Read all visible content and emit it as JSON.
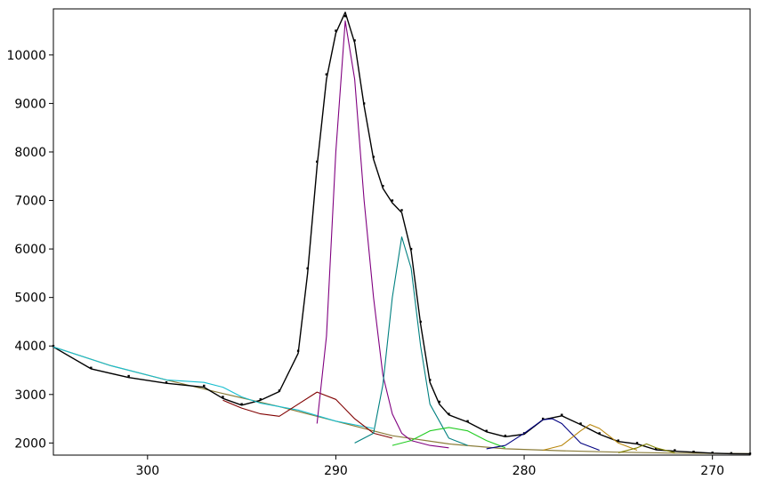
{
  "chart_data": {
    "type": "line",
    "title": "",
    "xlabel": "",
    "ylabel": "",
    "x_reversed": true,
    "xlim": [
      305,
      268
    ],
    "ylim": [
      1750,
      10950
    ],
    "x_ticks": [
      "300",
      "290",
      "280",
      "270"
    ],
    "x_tick_values": [
      300,
      290,
      280,
      270
    ],
    "y_ticks": [
      "2000",
      "3000",
      "4000",
      "5000",
      "6000",
      "7000",
      "8000",
      "9000",
      "10000"
    ],
    "y_tick_values": [
      2000,
      3000,
      4000,
      5000,
      6000,
      7000,
      8000,
      9000,
      10000
    ],
    "grid": false,
    "legend": "none",
    "background": {
      "x": [
        305,
        302,
        299,
        296,
        293,
        290,
        287,
        284,
        281,
        278,
        275,
        272,
        268
      ],
      "y": [
        3980,
        3600,
        3300,
        3020,
        2750,
        2450,
        2150,
        1980,
        1880,
        1840,
        1810,
        1790,
        1780
      ]
    },
    "series": [
      {
        "type": "scatter",
        "color": "#000000",
        "x": [
          305,
          303,
          301,
          299,
          297,
          296,
          295,
          294,
          293,
          292,
          291.5,
          291,
          290.5,
          290,
          289.5,
          289,
          288.5,
          288,
          287.5,
          287,
          286.5,
          286,
          285.5,
          285,
          284.5,
          284,
          283,
          282,
          281,
          280,
          279,
          278,
          277,
          276,
          275,
          274,
          273,
          272,
          271,
          270,
          269,
          268
        ],
        "y": [
          4000,
          3550,
          3380,
          3250,
          3180,
          2950,
          2800,
          2900,
          3080,
          3900,
          5600,
          7800,
          9600,
          10500,
          10800,
          10300,
          9000,
          7900,
          7300,
          7000,
          6800,
          6000,
          4500,
          3300,
          2850,
          2600,
          2450,
          2250,
          2150,
          2200,
          2500,
          2580,
          2400,
          2200,
          2050,
          2000,
          1880,
          1850,
          1820,
          1800,
          1790,
          1780
        ]
      },
      {
        "type": "line",
        "color": "#000000",
        "x": [
          305,
          303,
          301,
          299,
          297,
          296,
          295,
          294,
          293,
          292,
          291.5,
          291,
          290.5,
          290,
          289.5,
          289,
          288.5,
          288,
          287.5,
          287,
          286.5,
          286,
          285.5,
          285,
          284.5,
          284,
          283,
          282,
          281,
          280,
          279,
          278,
          277,
          276,
          275,
          274,
          273,
          272,
          271,
          270,
          269,
          268
        ],
        "y": [
          3980,
          3530,
          3350,
          3230,
          3150,
          2920,
          2780,
          2880,
          3060,
          3850,
          5500,
          7700,
          9500,
          10450,
          10880,
          10250,
          8950,
          7850,
          7250,
          6950,
          6750,
          5950,
          4450,
          3250,
          2800,
          2580,
          2430,
          2230,
          2130,
          2180,
          2480,
          2560,
          2380,
          2180,
          2030,
          1980,
          1860,
          1830,
          1810,
          1790,
          1780,
          1775
        ]
      },
      {
        "type": "line",
        "color": "#17becf",
        "x": [
          305,
          302,
          299,
          297,
          296,
          295,
          294,
          293,
          292,
          290,
          288
        ],
        "y": [
          3980,
          3600,
          3300,
          3250,
          3150,
          2950,
          2820,
          2750,
          2680,
          2450,
          2300
        ]
      },
      {
        "type": "line",
        "color": "#800000",
        "x": [
          296,
          295,
          294,
          293,
          292,
          291,
          290,
          289,
          288,
          287
        ],
        "y": [
          2880,
          2720,
          2600,
          2550,
          2800,
          3050,
          2900,
          2500,
          2200,
          2100
        ]
      },
      {
        "type": "line",
        "color": "#800080",
        "x": [
          291,
          290.5,
          290,
          289.5,
          289,
          288.5,
          288,
          287.5,
          287,
          286.5,
          286,
          285,
          284
        ],
        "y": [
          2400,
          4200,
          8000,
          10700,
          9500,
          7000,
          5000,
          3400,
          2600,
          2200,
          2050,
          1950,
          1900
        ]
      },
      {
        "type": "line",
        "color": "#008080",
        "x": [
          289,
          288,
          287.5,
          287,
          286.5,
          286,
          285.5,
          285,
          284,
          283
        ],
        "y": [
          2000,
          2200,
          3200,
          5000,
          6250,
          5600,
          4000,
          2800,
          2100,
          1950
        ]
      },
      {
        "type": "line",
        "color": "#22cc22",
        "x": [
          287,
          286,
          285,
          284,
          283,
          282,
          281
        ],
        "y": [
          1950,
          2050,
          2250,
          2320,
          2250,
          2050,
          1900
        ]
      },
      {
        "type": "line",
        "color": "#000080",
        "x": [
          282,
          281,
          280,
          279,
          278.5,
          278,
          277,
          276
        ],
        "y": [
          1880,
          1950,
          2200,
          2480,
          2500,
          2400,
          2000,
          1850
        ]
      },
      {
        "type": "line",
        "color": "#b8860b",
        "x": [
          279,
          278,
          277,
          276.5,
          276,
          275,
          274
        ],
        "y": [
          1850,
          1950,
          2250,
          2380,
          2300,
          2000,
          1850
        ]
      },
      {
        "type": "line",
        "color": "#808000",
        "x": [
          275,
          274,
          273.5,
          273,
          272
        ],
        "y": [
          1800,
          1900,
          1980,
          1900,
          1800
        ]
      }
    ]
  }
}
